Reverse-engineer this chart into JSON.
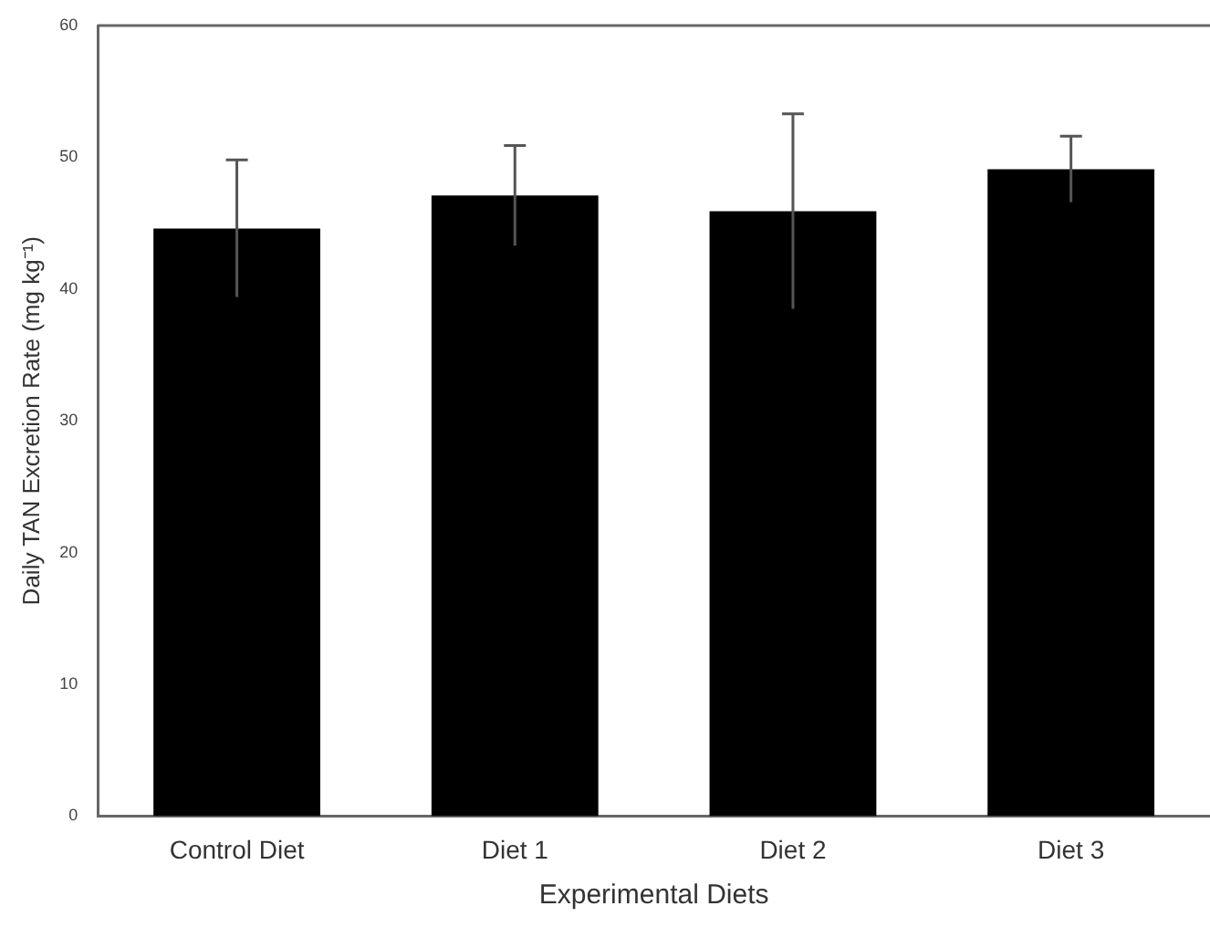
{
  "chart_data": {
    "type": "bar",
    "xlabel": "Experimental Diets",
    "ylabel": "Daily TAN Excretion Rate (mg kg⁻¹)",
    "categories": [
      "Control Diet",
      "Diet 1",
      "Diet 2",
      "Diet 3"
    ],
    "values": [
      44.6,
      47.1,
      45.9,
      49.1
    ],
    "errors": [
      5.2,
      3.8,
      7.4,
      2.5
    ],
    "color": "#000000",
    "ylim": [
      0,
      60
    ],
    "yticks": [
      0,
      10,
      20,
      30,
      40,
      50,
      60
    ],
    "grid": false
  }
}
